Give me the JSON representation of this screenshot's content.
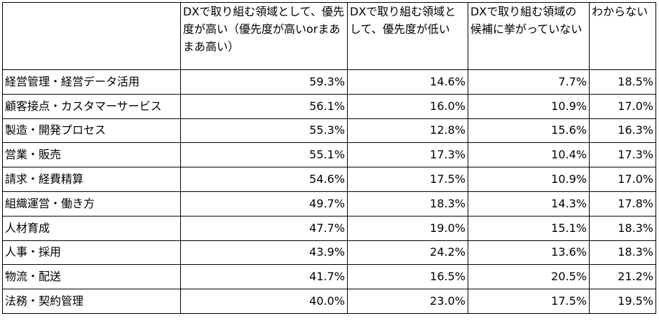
{
  "table": {
    "header": [
      "DXで取り組む領域として、優先度が高い（優先度が高いorまあまあ高い）",
      "DXで取り組む領域として、優先度が低い",
      "DXで取り組む領域の候補に挙がっていない",
      "わからない"
    ],
    "rows": [
      [
        "経営管理・経営データ活用",
        "59.3%",
        "14.6%",
        "7.7%",
        "18.5%"
      ],
      [
        "顧客接点・カスタマーサービス",
        "56.1%",
        "16.0%",
        "10.9%",
        "17.0%"
      ],
      [
        "製造・開発プロセス",
        "55.3%",
        "12.8%",
        "15.6%",
        "16.3%"
      ],
      [
        "営業・販売",
        "55.1%",
        "17.3%",
        "10.4%",
        "17.3%"
      ],
      [
        "請求・経費精算",
        "54.6%",
        "17.5%",
        "10.9%",
        "17.0%"
      ],
      [
        "組織運営・働き方",
        "49.7%",
        "18.3%",
        "14.3%",
        "17.8%"
      ],
      [
        "人材育成",
        "47.7%",
        "19.0%",
        "15.1%",
        "18.3%"
      ],
      [
        "人事・採用",
        "43.9%",
        "24.2%",
        "13.6%",
        "18.3%"
      ],
      [
        "物流・配送",
        "41.7%",
        "16.5%",
        "20.5%",
        "21.2%"
      ],
      [
        "法務・契約管理",
        "40.0%",
        "23.0%",
        "17.5%",
        "19.5%"
      ]
    ]
  }
}
